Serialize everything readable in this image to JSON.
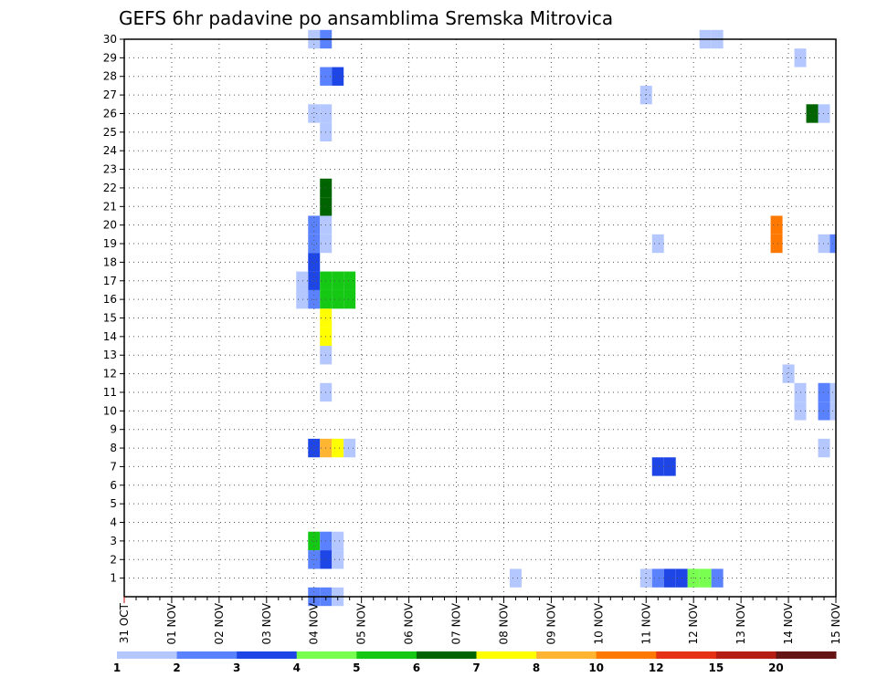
{
  "chart_data": {
    "type": "heatmap",
    "title": "GEFS 6hr padavine po ansamblima Sremska Mitrovica",
    "xlabel": "",
    "ylabel": "",
    "x_ticks": [
      "31 OCT",
      "01 NOV",
      "02 NOV",
      "03 NOV",
      "04 NOV",
      "05 NOV",
      "06 NOV",
      "07 NOV",
      "08 NOV",
      "09 NOV",
      "10 NOV",
      "11 NOV",
      "12 NOV",
      "13 NOV",
      "14 NOV",
      "15 NOV"
    ],
    "y_ticks": [
      "1",
      "2",
      "3",
      "4",
      "5",
      "6",
      "7",
      "8",
      "9",
      "10",
      "11",
      "12",
      "13",
      "14",
      "15",
      "16",
      "17",
      "18",
      "19",
      "20",
      "21",
      "22",
      "23",
      "24",
      "25",
      "26",
      "27",
      "28",
      "29",
      "30"
    ],
    "xlim": [
      0,
      60
    ],
    "ylim": [
      0,
      30
    ],
    "grid": true,
    "colorbar": {
      "labels": [
        "1",
        "2",
        "3",
        "4",
        "5",
        "6",
        "7",
        "8",
        "10",
        "12",
        "15",
        "20"
      ],
      "colors": [
        "#b4c8ff",
        "#5a82ff",
        "#1e46e6",
        "#78ff50",
        "#14c814",
        "#006400",
        "#ffff00",
        "#ffb432",
        "#ff7800",
        "#e63214",
        "#b41e14",
        "#641414"
      ]
    },
    "points": [
      {
        "step": 16,
        "member": 0,
        "level": 2
      },
      {
        "step": 17,
        "member": 0,
        "level": 2
      },
      {
        "step": 18,
        "member": 0,
        "level": 1
      },
      {
        "step": 16,
        "member": 30,
        "level": 1
      },
      {
        "step": 17,
        "member": 30,
        "level": 2
      },
      {
        "step": 49,
        "member": 30,
        "level": 1
      },
      {
        "step": 50,
        "member": 30,
        "level": 1
      },
      {
        "step": 57,
        "member": 29,
        "level": 1
      },
      {
        "step": 17,
        "member": 28,
        "level": 2
      },
      {
        "step": 18,
        "member": 28,
        "level": 3
      },
      {
        "step": 44,
        "member": 27,
        "level": 1
      },
      {
        "step": 16,
        "member": 26,
        "level": 1
      },
      {
        "step": 17,
        "member": 26,
        "level": 1
      },
      {
        "step": 58,
        "member": 26,
        "level": 6
      },
      {
        "step": 59,
        "member": 26,
        "level": 1
      },
      {
        "step": 17,
        "member": 25,
        "level": 1
      },
      {
        "step": 17,
        "member": 22,
        "level": 6
      },
      {
        "step": 17,
        "member": 21,
        "level": 6
      },
      {
        "step": 16,
        "member": 20,
        "level": 2
      },
      {
        "step": 17,
        "member": 20,
        "level": 1
      },
      {
        "step": 55,
        "member": 20,
        "level": 9
      },
      {
        "step": 55,
        "member": 19,
        "level": 9
      },
      {
        "step": 16,
        "member": 19,
        "level": 2
      },
      {
        "step": 17,
        "member": 19,
        "level": 1
      },
      {
        "step": 45,
        "member": 19,
        "level": 1
      },
      {
        "step": 59,
        "member": 19,
        "level": 1
      },
      {
        "step": 60,
        "member": 19,
        "level": 2
      },
      {
        "step": 16,
        "member": 18,
        "level": 3
      },
      {
        "step": 16,
        "member": 17,
        "level": 3
      },
      {
        "step": 15,
        "member": 17,
        "level": 1
      },
      {
        "step": 15,
        "member": 16,
        "level": 1
      },
      {
        "step": 16,
        "member": 16,
        "level": 2
      },
      {
        "step": 17,
        "member": 17,
        "level": 5
      },
      {
        "step": 18,
        "member": 17,
        "level": 5
      },
      {
        "step": 19,
        "member": 17,
        "level": 5
      },
      {
        "step": 17,
        "member": 16,
        "level": 5
      },
      {
        "step": 18,
        "member": 16,
        "level": 5
      },
      {
        "step": 19,
        "member": 16,
        "level": 5
      },
      {
        "step": 17,
        "member": 15,
        "level": 7
      },
      {
        "step": 17,
        "member": 14,
        "level": 7
      },
      {
        "step": 17,
        "member": 13,
        "level": 1
      },
      {
        "step": 56,
        "member": 12,
        "level": 1
      },
      {
        "step": 17,
        "member": 11,
        "level": 1
      },
      {
        "step": 57,
        "member": 11,
        "level": 1
      },
      {
        "step": 57,
        "member": 10,
        "level": 1
      },
      {
        "step": 59,
        "member": 11,
        "level": 2
      },
      {
        "step": 60,
        "member": 11,
        "level": 1
      },
      {
        "step": 59,
        "member": 10,
        "level": 2
      },
      {
        "step": 60,
        "member": 10,
        "level": 1
      },
      {
        "step": 16,
        "member": 8,
        "level": 3
      },
      {
        "step": 17,
        "member": 8,
        "level": 8
      },
      {
        "step": 18,
        "member": 8,
        "level": 7
      },
      {
        "step": 19,
        "member": 8,
        "level": 1
      },
      {
        "step": 59,
        "member": 8,
        "level": 1
      },
      {
        "step": 45,
        "member": 7,
        "level": 3
      },
      {
        "step": 46,
        "member": 7,
        "level": 3
      },
      {
        "step": 16,
        "member": 3,
        "level": 5
      },
      {
        "step": 17,
        "member": 3,
        "level": 2
      },
      {
        "step": 18,
        "member": 3,
        "level": 1
      },
      {
        "step": 16,
        "member": 2,
        "level": 2
      },
      {
        "step": 17,
        "member": 2,
        "level": 3
      },
      {
        "step": 18,
        "member": 2,
        "level": 1
      },
      {
        "step": 33,
        "member": 1,
        "level": 1
      },
      {
        "step": 44,
        "member": 1,
        "level": 1
      },
      {
        "step": 45,
        "member": 1,
        "level": 2
      },
      {
        "step": 46,
        "member": 1,
        "level": 3
      },
      {
        "step": 47,
        "member": 1,
        "level": 3
      },
      {
        "step": 48,
        "member": 1,
        "level": 4
      },
      {
        "step": 49,
        "member": 1,
        "level": 4
      },
      {
        "step": 50,
        "member": 1,
        "level": 2
      }
    ]
  }
}
